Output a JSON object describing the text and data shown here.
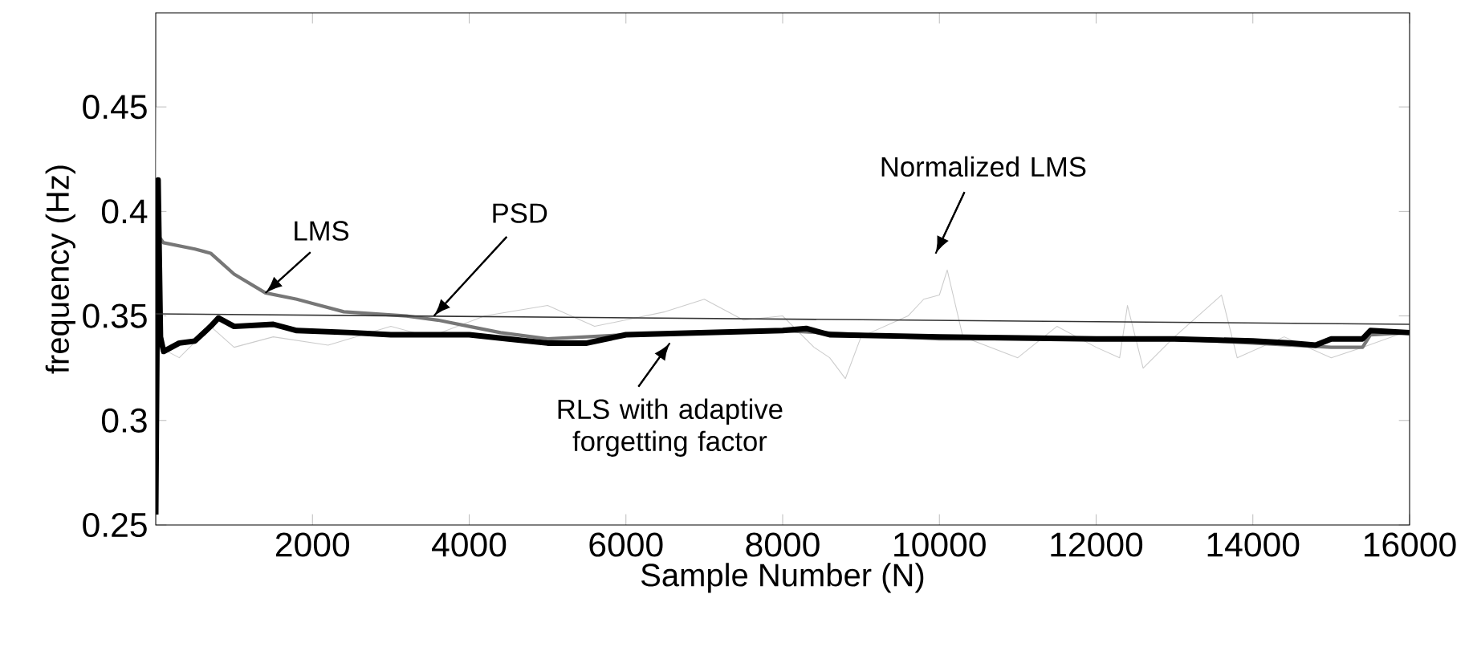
{
  "chart_data": {
    "type": "line",
    "xlabel": "Sample Number  (N)",
    "ylabel": "frequency (Hz)",
    "xlim": [
      0,
      16000
    ],
    "ylim": [
      0.25,
      0.495
    ],
    "xticks": [
      2000,
      4000,
      6000,
      8000,
      10000,
      12000,
      14000,
      16000
    ],
    "yticks": [
      0.25,
      0.3,
      0.35,
      0.4,
      0.45
    ],
    "grid": false,
    "series": [
      {
        "color": "#cccccc",
        "x": [
          0,
          20,
          50,
          300,
          700,
          1000,
          1500,
          2200,
          3000,
          3500,
          4200,
          5000,
          5600,
          6500,
          7000,
          7500,
          8000,
          8400,
          8600,
          8800,
          9000,
          9600,
          9800,
          10000,
          10100,
          10300,
          11000,
          11500,
          12000,
          12300,
          12400,
          12600,
          13000,
          13600,
          13800,
          14400,
          15000,
          15400,
          16000
        ],
        "values": [
          0.45,
          0.33,
          0.335,
          0.33,
          0.345,
          0.335,
          0.34,
          0.336,
          0.345,
          0.34,
          0.35,
          0.355,
          0.345,
          0.352,
          0.358,
          0.348,
          0.35,
          0.335,
          0.33,
          0.32,
          0.34,
          0.35,
          0.358,
          0.36,
          0.372,
          0.34,
          0.33,
          0.345,
          0.335,
          0.33,
          0.355,
          0.325,
          0.34,
          0.36,
          0.33,
          0.34,
          0.33,
          0.335,
          0.343
        ]
      },
      {
        "color": "#777777",
        "x": [
          0,
          100,
          500,
          700,
          1000,
          1400,
          1800,
          2000,
          2400,
          2800,
          3200,
          3600,
          4000,
          4400,
          5000,
          6000,
          7000,
          8000,
          9000,
          10000,
          11000,
          12000,
          13000,
          14000,
          15000,
          15400,
          15500,
          16000
        ],
        "values": [
          0.39,
          0.385,
          0.382,
          0.38,
          0.37,
          0.361,
          0.358,
          0.356,
          0.352,
          0.351,
          0.35,
          0.348,
          0.345,
          0.342,
          0.339,
          0.341,
          0.342,
          0.343,
          0.341,
          0.339,
          0.339,
          0.339,
          0.339,
          0.337,
          0.335,
          0.335,
          0.341,
          0.342
        ]
      },
      {
        "color": "#000000",
        "x": [
          0,
          30,
          60,
          100,
          300,
          500,
          700,
          800,
          1000,
          1500,
          1800,
          2500,
          3000,
          4000,
          4500,
          5000,
          5500,
          6000,
          7000,
          8000,
          8300,
          8600,
          10000,
          12000,
          13000,
          14000,
          14500,
          14800,
          15000,
          15400,
          15500,
          16000
        ],
        "values": [
          0.255,
          0.415,
          0.34,
          0.333,
          0.337,
          0.338,
          0.345,
          0.349,
          0.345,
          0.346,
          0.343,
          0.342,
          0.341,
          0.341,
          0.339,
          0.337,
          0.337,
          0.341,
          0.342,
          0.343,
          0.344,
          0.341,
          0.34,
          0.339,
          0.339,
          0.338,
          0.337,
          0.336,
          0.339,
          0.339,
          0.343,
          0.342
        ]
      },
      {
        "color": "#333333",
        "x": [
          0,
          16000
        ],
        "values": [
          0.351,
          0.346
        ]
      }
    ],
    "annotations": [
      {
        "text": "LMS",
        "x": 1400,
        "y": 0.361
      },
      {
        "text": "PSD",
        "x": 3550,
        "y": 0.35
      },
      "Normalized LMS",
      "RLS with adaptive\nforgetting factor"
    ]
  }
}
